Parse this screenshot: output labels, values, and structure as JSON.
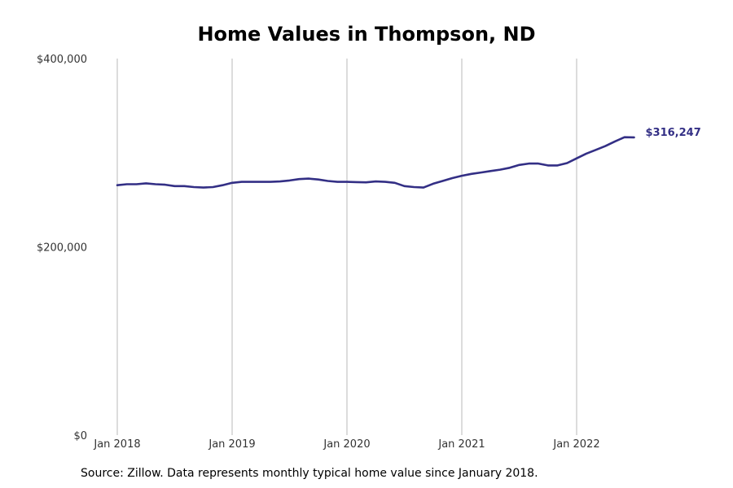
{
  "chart_data": {
    "type": "line",
    "title": "Home Values in Thompson, ND",
    "xlabel": "",
    "ylabel": "",
    "ylim": [
      0,
      400000
    ],
    "y_ticks": [
      {
        "value": 0,
        "label": "$0"
      },
      {
        "value": 200000,
        "label": "$200,000"
      },
      {
        "value": 400000,
        "label": "$400,000"
      }
    ],
    "x_ticks": [
      {
        "date": "2018-01",
        "label": "Jan 2018"
      },
      {
        "date": "2019-01",
        "label": "Jan 2019"
      },
      {
        "date": "2020-01",
        "label": "Jan 2020"
      },
      {
        "date": "2021-01",
        "label": "Jan 2021"
      },
      {
        "date": "2022-01",
        "label": "Jan 2022"
      }
    ],
    "x_range": [
      "2018-01",
      "2022-07"
    ],
    "grid": "vertical",
    "line_color": "#332f85",
    "end_label": "$316,247",
    "series": [
      {
        "x": [
          "2018-01",
          "2018-02",
          "2018-03",
          "2018-04",
          "2018-05",
          "2018-06",
          "2018-07",
          "2018-08",
          "2018-09",
          "2018-10",
          "2018-11",
          "2018-12",
          "2019-01",
          "2019-02",
          "2019-03",
          "2019-04",
          "2019-05",
          "2019-06",
          "2019-07",
          "2019-08",
          "2019-09",
          "2019-10",
          "2019-11",
          "2019-12",
          "2020-01",
          "2020-02",
          "2020-03",
          "2020-04",
          "2020-05",
          "2020-06",
          "2020-07",
          "2020-08",
          "2020-09",
          "2020-10",
          "2020-11",
          "2020-12",
          "2021-01",
          "2021-02",
          "2021-03",
          "2021-04",
          "2021-05",
          "2021-06",
          "2021-07",
          "2021-08",
          "2021-09",
          "2021-10",
          "2021-11",
          "2021-12",
          "2022-01",
          "2022-02",
          "2022-03",
          "2022-04",
          "2022-05",
          "2022-06",
          "2022-07"
        ],
        "values": [
          265500,
          266500,
          266500,
          267500,
          266500,
          266000,
          264500,
          264500,
          263500,
          263000,
          263500,
          265500,
          268000,
          269000,
          269000,
          269000,
          269000,
          269500,
          270500,
          272000,
          272500,
          271500,
          270000,
          269000,
          269000,
          268800,
          268500,
          269500,
          269000,
          268000,
          264500,
          263500,
          263000,
          267000,
          270000,
          273000,
          275500,
          277500,
          279000,
          280500,
          282000,
          284000,
          287000,
          288500,
          288500,
          286500,
          286500,
          289000,
          294000,
          299000,
          303000,
          307000,
          312000,
          316500,
          316247
        ]
      }
    ]
  },
  "source_note": "Source: Zillow. Data represents monthly typical home value since January 2018."
}
